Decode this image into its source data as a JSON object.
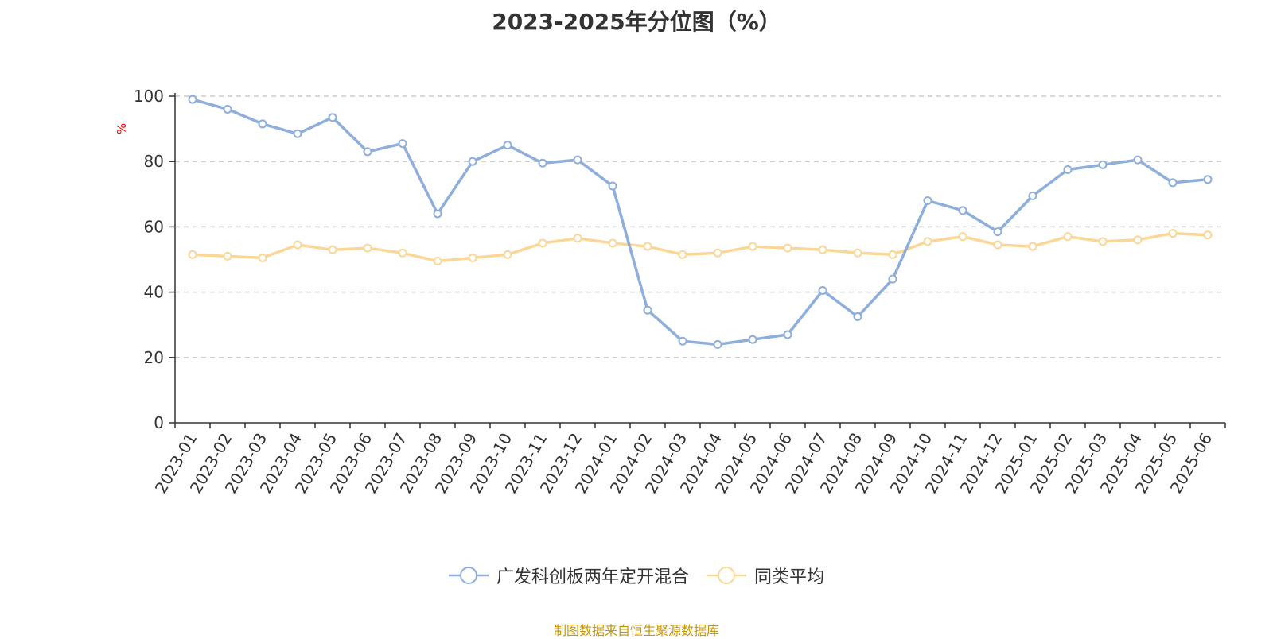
{
  "chart_data": {
    "type": "line",
    "title": "2023-2025年分位图（%）",
    "ylabel": "%",
    "ylim": [
      0,
      100
    ],
    "yticks": [
      0,
      20,
      40,
      60,
      80,
      100
    ],
    "grid": true,
    "legend_position": "bottom",
    "categories": [
      "2023-01",
      "2023-02",
      "2023-03",
      "2023-04",
      "2023-05",
      "2023-06",
      "2023-07",
      "2023-08",
      "2023-09",
      "2023-10",
      "2023-11",
      "2023-12",
      "2024-01",
      "2024-02",
      "2024-03",
      "2024-04",
      "2024-05",
      "2024-06",
      "2024-07",
      "2024-08",
      "2024-09",
      "2024-10",
      "2024-11",
      "2024-12",
      "2025-01",
      "2025-02",
      "2025-03",
      "2025-04",
      "2025-05",
      "2025-06"
    ],
    "series": [
      {
        "name": "广发科创板两年定开混合",
        "color": "#8eaedb",
        "values": [
          99,
          96,
          91.5,
          88.5,
          93.5,
          83,
          85.5,
          64,
          80,
          85,
          79.5,
          80.5,
          72.5,
          34.5,
          25,
          24,
          25.5,
          27,
          40.5,
          32.5,
          44,
          68,
          65,
          58.5,
          69.5,
          77.5,
          79,
          80.5,
          73.5,
          74.5
        ]
      },
      {
        "name": "同类平均",
        "color": "#fad797",
        "values": [
          51.5,
          51,
          50.5,
          54.5,
          53,
          53.5,
          52,
          49.5,
          50.5,
          51.5,
          55,
          56.5,
          55,
          54,
          51.5,
          52,
          54,
          53.5,
          53,
          52,
          51.5,
          55.5,
          57,
          54.5,
          54,
          57,
          55.5,
          56,
          58,
          57.5
        ]
      }
    ]
  },
  "source_note": "制图数据来自恒生聚源数据库"
}
